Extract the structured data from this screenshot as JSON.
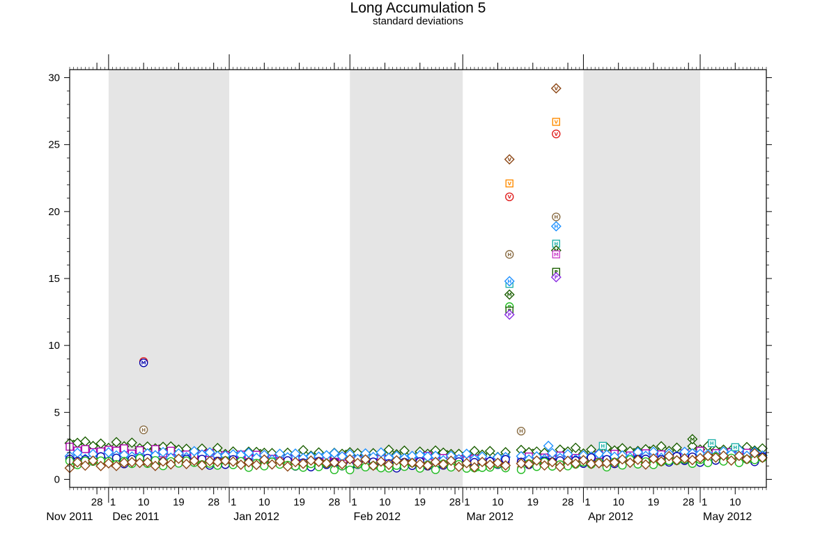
{
  "chart_data": {
    "type": "scatter",
    "title": "Long Accumulation 5",
    "subtitle": "standard deviations",
    "xlabel": "",
    "ylabel": "",
    "xlim": [
      "2011-11-21",
      "2012-05-18"
    ],
    "ylim": [
      -0.6,
      30.6
    ],
    "y_ticks": [
      0,
      5,
      10,
      15,
      20,
      25,
      30
    ],
    "x_ticks": [
      {
        "date": "2011-11-28",
        "label": "28"
      },
      {
        "date": "2011-12-01",
        "label": "1"
      },
      {
        "date": "2011-12-10",
        "label": "10"
      },
      {
        "date": "2011-12-19",
        "label": "19"
      },
      {
        "date": "2011-12-28",
        "label": "28"
      },
      {
        "date": "2012-01-01",
        "label": "1"
      },
      {
        "date": "2012-01-10",
        "label": "10"
      },
      {
        "date": "2012-01-19",
        "label": "19"
      },
      {
        "date": "2012-01-28",
        "label": "28"
      },
      {
        "date": "2012-02-01",
        "label": "1"
      },
      {
        "date": "2012-02-10",
        "label": "10"
      },
      {
        "date": "2012-02-19",
        "label": "19"
      },
      {
        "date": "2012-02-28",
        "label": "28"
      },
      {
        "date": "2012-03-01",
        "label": "1"
      },
      {
        "date": "2012-03-10",
        "label": "10"
      },
      {
        "date": "2012-03-19",
        "label": "19"
      },
      {
        "date": "2012-03-28",
        "label": "28"
      },
      {
        "date": "2012-04-01",
        "label": "1"
      },
      {
        "date": "2012-04-10",
        "label": "10"
      },
      {
        "date": "2012-04-19",
        "label": "19"
      },
      {
        "date": "2012-04-28",
        "label": "28"
      },
      {
        "date": "2012-05-01",
        "label": "1"
      },
      {
        "date": "2012-05-10",
        "label": "10"
      }
    ],
    "month_labels": [
      {
        "date": "2011-11-21",
        "label": "Nov 2011"
      },
      {
        "date": "2011-12-08",
        "label": "Dec 2011"
      },
      {
        "date": "2012-01-08",
        "label": "Jan 2012"
      },
      {
        "date": "2012-02-08",
        "label": "Feb 2012"
      },
      {
        "date": "2012-03-08",
        "label": "Mar 2012"
      },
      {
        "date": "2012-04-08",
        "label": "Apr 2012"
      },
      {
        "date": "2012-05-08",
        "label": "May 2012"
      }
    ],
    "shaded_months": [
      [
        "2011-12-01",
        "2012-01-01"
      ],
      [
        "2012-02-01",
        "2012-03-01"
      ],
      [
        "2012-04-01",
        "2012-05-01"
      ]
    ],
    "shade_color": "#e5e5e5",
    "grid": false,
    "background_series": [
      {
        "color": "#1a5e00",
        "marker": "diamond",
        "fill": "#2e8b00",
        "levels": [
          2.7,
          2.5,
          2.1,
          1.9,
          1.9,
          2.0,
          1.9,
          2.1,
          2.2,
          2.3,
          2.2
        ]
      },
      {
        "color": "#aa00aa",
        "marker": "square",
        "levels": [
          2.2,
          2.1,
          1.8,
          1.5,
          1.4,
          1.5,
          1.4,
          1.6,
          1.7,
          1.9,
          1.8
        ]
      },
      {
        "color": "#1e90ff",
        "marker": "diamond",
        "levels": [
          1.8,
          1.8,
          1.9,
          1.7,
          1.8,
          1.7,
          1.6,
          1.7,
          1.8,
          1.9,
          2.0
        ]
      },
      {
        "color": "#0000aa",
        "marker": "circle",
        "levels": [
          1.5,
          1.4,
          1.3,
          1.2,
          1.1,
          1.1,
          1.2,
          1.3,
          1.4,
          1.5,
          1.5
        ]
      },
      {
        "color": "#22bb22",
        "marker": "circle",
        "levels": [
          1.3,
          1.3,
          1.2,
          1.1,
          0.9,
          1.0,
          0.9,
          1.1,
          1.2,
          1.4,
          1.5
        ]
      },
      {
        "color": "#8b4513",
        "marker": "diamond",
        "levels": [
          1.1,
          1.2,
          1.3,
          1.2,
          1.3,
          1.2,
          1.1,
          1.2,
          1.3,
          1.6,
          1.7
        ]
      }
    ],
    "points": [
      {
        "date": "2011-12-10",
        "value": 8.8,
        "marker": "circle",
        "color": "#e02020",
        "letter": ""
      },
      {
        "date": "2011-12-10",
        "value": 8.7,
        "marker": "circle",
        "color": "#0000aa",
        "letter": "M"
      },
      {
        "date": "2011-12-10",
        "value": 3.7,
        "marker": "circle",
        "color": "#8b6f47",
        "letter": "H"
      },
      {
        "date": "2012-03-13",
        "value": 23.9,
        "marker": "diamond",
        "color": "#8b4513",
        "letter": "V"
      },
      {
        "date": "2012-03-13",
        "value": 22.1,
        "marker": "square",
        "color": "#ff8c00",
        "letter": "V"
      },
      {
        "date": "2012-03-13",
        "value": 21.1,
        "marker": "circle",
        "color": "#e02020",
        "letter": "V"
      },
      {
        "date": "2012-03-13",
        "value": 16.8,
        "marker": "circle",
        "color": "#8b6f47",
        "letter": "H"
      },
      {
        "date": "2012-03-13",
        "value": 14.6,
        "marker": "square",
        "color": "#20b2aa",
        "letter": "H"
      },
      {
        "date": "2012-03-13",
        "value": 14.8,
        "marker": "diamond",
        "color": "#1e90ff",
        "letter": "H"
      },
      {
        "date": "2012-03-13",
        "value": 13.8,
        "marker": "diamond",
        "color": "#1a5e00",
        "letter": "M"
      },
      {
        "date": "2012-03-13",
        "value": 12.9,
        "marker": "circle",
        "color": "#22bb22",
        "letter": "P"
      },
      {
        "date": "2012-03-13",
        "value": 12.6,
        "marker": "square",
        "color": "#1a5e00",
        "letter": "P"
      },
      {
        "date": "2012-03-13",
        "value": 12.3,
        "marker": "diamond",
        "color": "#8a2be2",
        "letter": "P"
      },
      {
        "date": "2012-03-16",
        "value": 3.6,
        "marker": "circle",
        "color": "#8b6f47",
        "letter": "H"
      },
      {
        "date": "2012-03-25",
        "value": 29.2,
        "marker": "diamond",
        "color": "#8b4513",
        "letter": "V"
      },
      {
        "date": "2012-03-25",
        "value": 26.7,
        "marker": "square",
        "color": "#ff8c00",
        "letter": "V"
      },
      {
        "date": "2012-03-25",
        "value": 25.8,
        "marker": "circle",
        "color": "#e02020",
        "letter": "V"
      },
      {
        "date": "2012-03-25",
        "value": 19.6,
        "marker": "circle",
        "color": "#8b6f47",
        "letter": "H"
      },
      {
        "date": "2012-03-25",
        "value": 18.9,
        "marker": "diamond",
        "color": "#1e90ff",
        "letter": "H"
      },
      {
        "date": "2012-03-25",
        "value": 17.6,
        "marker": "square",
        "color": "#20b2aa",
        "letter": "H"
      },
      {
        "date": "2012-03-25",
        "value": 17.1,
        "marker": "diamond",
        "color": "#1a5e00",
        "letter": "M"
      },
      {
        "date": "2012-03-25",
        "value": 16.8,
        "marker": "square",
        "color": "#cc44cc",
        "letter": "M"
      },
      {
        "date": "2012-03-25",
        "value": 15.5,
        "marker": "square",
        "color": "#1a5e00",
        "letter": "P"
      },
      {
        "date": "2012-03-25",
        "value": 15.1,
        "marker": "diamond",
        "color": "#8a2be2",
        "letter": "P"
      },
      {
        "date": "2012-03-23",
        "value": 2.5,
        "marker": "diamond",
        "color": "#1e90ff",
        "letter": ""
      },
      {
        "date": "2012-04-06",
        "value": 2.5,
        "marker": "square",
        "color": "#20b2aa",
        "letter": "H"
      },
      {
        "date": "2012-04-29",
        "value": 3.0,
        "marker": "diamond",
        "color": "#1a5e00",
        "letter": "M"
      },
      {
        "date": "2012-05-04",
        "value": 2.7,
        "marker": "square",
        "color": "#20b2aa",
        "letter": "H"
      },
      {
        "date": "2012-05-10",
        "value": 2.4,
        "marker": "square",
        "color": "#20b2aa",
        "letter": "H"
      }
    ]
  }
}
